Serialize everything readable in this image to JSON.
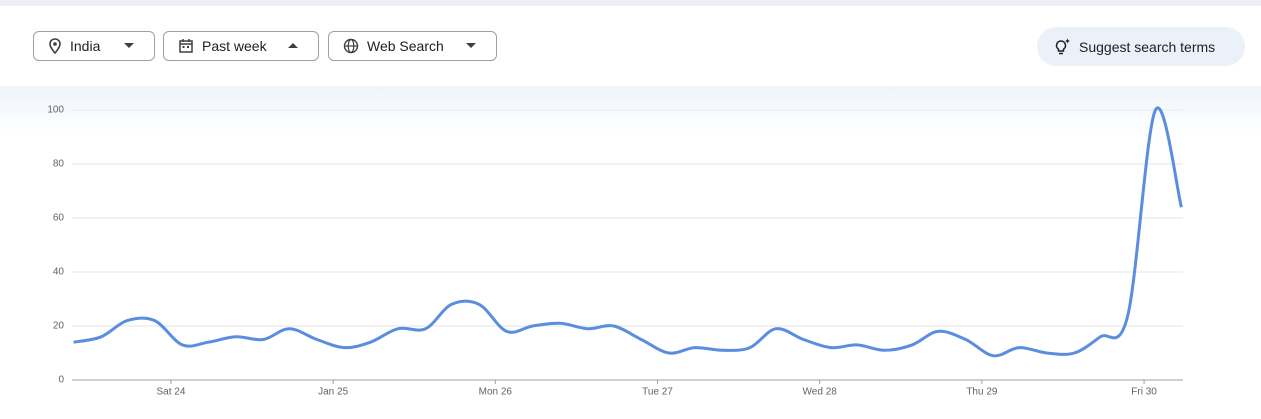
{
  "toolbar": {
    "location": "India",
    "period": "Past week",
    "property": "Web Search",
    "suggest": "Suggest search terms"
  },
  "chart_data": {
    "type": "line",
    "color": "#5b8ddf",
    "grid": true,
    "x": [
      -0.6,
      -0.43,
      -0.27,
      -0.1,
      0.07,
      0.23,
      0.4,
      0.57,
      0.73,
      0.9,
      1.07,
      1.23,
      1.4,
      1.57,
      1.73,
      1.9,
      2.07,
      2.23,
      2.4,
      2.57,
      2.73,
      2.9,
      3.07,
      3.23,
      3.4,
      3.57,
      3.73,
      3.9,
      4.07,
      4.23,
      4.4,
      4.57,
      4.73,
      4.9,
      5.07,
      5.23,
      5.4,
      5.57,
      5.73,
      5.9,
      6.07,
      6.23
    ],
    "values": [
      14,
      16,
      22,
      22,
      13,
      14,
      16,
      15,
      19,
      15,
      12,
      14,
      19,
      19,
      28,
      28,
      18,
      20,
      21,
      19,
      20,
      15,
      10,
      12,
      11,
      12,
      19,
      15,
      12,
      13,
      11,
      13,
      18,
      15,
      9,
      12,
      10,
      10,
      16,
      24,
      100,
      64
    ],
    "xlim": [
      -0.61,
      6.24
    ],
    "xticks": [
      {
        "value": 0,
        "label": "Sat 24"
      },
      {
        "value": 1,
        "label": "Jan 25"
      },
      {
        "value": 2,
        "label": "Mon 26"
      },
      {
        "value": 3,
        "label": "Tue 27"
      },
      {
        "value": 4,
        "label": "Wed 28"
      },
      {
        "value": 5,
        "label": "Thu 29"
      },
      {
        "value": 6,
        "label": "Fri 30"
      }
    ],
    "ylim": [
      0,
      100
    ],
    "yticks": [
      0,
      20,
      40,
      60,
      80,
      100
    ]
  }
}
